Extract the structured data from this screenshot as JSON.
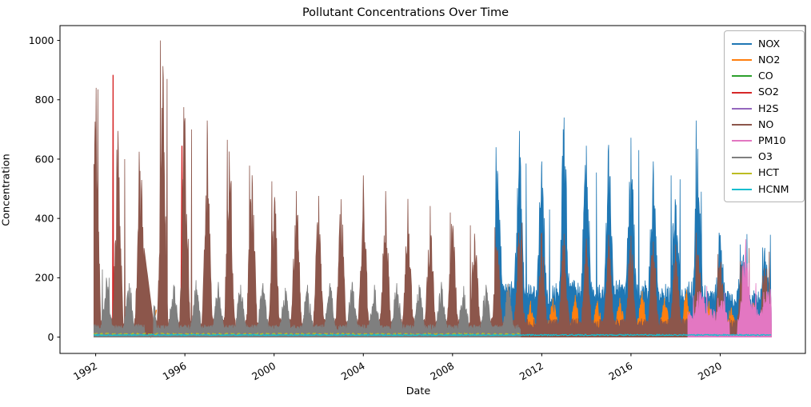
{
  "title": "Pollutant Concentrations Over Time",
  "axes": {
    "xlabel": "Date",
    "ylabel": "Concentration",
    "xlim": [
      1990.4,
      2023.82
    ],
    "ylim": [
      -55,
      1050
    ],
    "xticks": [
      1992,
      1996,
      2000,
      2004,
      2008,
      2012,
      2016,
      2020
    ],
    "yticks": [
      0,
      200,
      400,
      600,
      800,
      1000
    ],
    "grid": false,
    "tick_rotation_deg": 30
  },
  "legend": {
    "position": "upper right"
  },
  "chart_data": {
    "type": "line",
    "title": "Pollutant Concentrations Over Time",
    "xlabel": "Date",
    "ylabel": "Concentration",
    "x_unit": "year",
    "note": "Dense multi-decade daily time series; series stored as seasonal peak envelopes (year, winter/summer peak concentration) plus baselines, or explicit points for sparse series.",
    "series": [
      {
        "name": "NOX",
        "color": "#1f77b4",
        "render": "mass",
        "range": [
          2009.92,
          2022.3
        ],
        "base": 120,
        "phase": 0.0,
        "floor": 0.12,
        "exp": 1.7,
        "peaks": [
          [
            2009.95,
            640
          ],
          [
            2011.0,
            695
          ],
          [
            2011.3,
            585
          ],
          [
            2012.0,
            592
          ],
          [
            2012.35,
            430
          ],
          [
            2013.0,
            740
          ],
          [
            2014.0,
            645
          ],
          [
            2014.45,
            555
          ],
          [
            2015.0,
            648
          ],
          [
            2016.0,
            672
          ],
          [
            2016.35,
            630
          ],
          [
            2017.0,
            592
          ],
          [
            2017.8,
            545
          ],
          [
            2018.2,
            532
          ],
          [
            2018.92,
            730
          ],
          [
            2019.15,
            490
          ],
          [
            2019.95,
            352
          ],
          [
            2020.9,
            312
          ],
          [
            2021.2,
            347
          ],
          [
            2021.9,
            302
          ],
          [
            2022.25,
            345
          ]
        ]
      },
      {
        "name": "NO2",
        "color": "#ff7f0e",
        "render": "mass",
        "range": [
          2009.9,
          2022.3
        ],
        "base": 25,
        "phase": 0.5,
        "floor": 0.1,
        "exp": 1.5,
        "peaks": [
          [
            2010.5,
            110
          ],
          [
            2011.5,
            122
          ],
          [
            2012.5,
            132
          ],
          [
            2013.5,
            142
          ],
          [
            2014.5,
            122
          ],
          [
            2015.5,
            132
          ],
          [
            2016.5,
            155
          ],
          [
            2017.5,
            132
          ],
          [
            2018.5,
            160
          ],
          [
            2019.5,
            122
          ],
          [
            2020.5,
            100
          ],
          [
            2021.5,
            115
          ],
          [
            2022.2,
            108
          ]
        ],
        "extra_lines": [
          {
            "points": [
              [
                1994.0,
                118
              ],
              [
                1994.47,
                3
              ],
              [
                1994.72,
                92
              ]
            ]
          }
        ]
      },
      {
        "name": "CO",
        "color": "#2ca02c",
        "render": "noise-line",
        "range": [
          1991.92,
          2022.3
        ],
        "base": 3,
        "amp": 2
      },
      {
        "name": "SO2",
        "color": "#d62728",
        "render": "points-line",
        "points": [
          [
            1991.95,
            8
          ],
          [
            1992.4,
            8
          ],
          [
            1992.76,
            12
          ],
          [
            1992.78,
            884
          ],
          [
            1992.8,
            12
          ],
          [
            1993.1,
            8
          ],
          [
            1993.98,
            8
          ],
          [
            1994.03,
            300
          ],
          [
            1994.5,
            2
          ],
          [
            1994.56,
            58
          ],
          [
            1994.62,
            2
          ],
          [
            1995.2,
            3
          ],
          [
            1995.82,
            6
          ],
          [
            1995.87,
            645
          ],
          [
            1995.93,
            6
          ],
          [
            1996.0,
            4
          ]
        ]
      },
      {
        "name": "H2S",
        "color": "#9467bd",
        "render": "noise-line",
        "range": [
          1991.92,
          2022.3
        ],
        "base": 2,
        "amp": 0.8
      },
      {
        "name": "NO",
        "color": "#8c564b",
        "render": "mass",
        "range": [
          1991.92,
          2022.3
        ],
        "base": 55,
        "phase": 0.0,
        "floor": 0.0,
        "exp": 1.7,
        "peaks": [
          [
            1992.02,
            840
          ],
          [
            1992.1,
            835
          ],
          [
            1993.0,
            695
          ],
          [
            1993.3,
            600
          ],
          [
            1993.95,
            625
          ],
          [
            1994.9,
            1000
          ],
          [
            1995.2,
            870
          ],
          [
            1995.95,
            775
          ],
          [
            1996.3,
            700
          ],
          [
            1997.0,
            730
          ],
          [
            1997.9,
            665
          ],
          [
            1998.9,
            578
          ],
          [
            1999.9,
            525
          ],
          [
            2001.0,
            492
          ],
          [
            2002.0,
            476
          ],
          [
            2003.0,
            465
          ],
          [
            2004.0,
            545
          ],
          [
            2005.0,
            492
          ],
          [
            2006.0,
            466
          ],
          [
            2007.0,
            442
          ],
          [
            2007.9,
            420
          ],
          [
            2008.8,
            377
          ],
          [
            2009.9,
            370
          ],
          [
            2011.1,
            385
          ],
          [
            2012.0,
            352
          ],
          [
            2013.0,
            348
          ],
          [
            2014.0,
            332
          ],
          [
            2015.0,
            345
          ],
          [
            2016.0,
            342
          ],
          [
            2017.0,
            322
          ],
          [
            2018.0,
            312
          ],
          [
            2018.92,
            352
          ],
          [
            2019.9,
            280
          ],
          [
            2020.9,
            255
          ],
          [
            2021.3,
            300
          ],
          [
            2022.2,
            288
          ]
        ],
        "gaps": [
          {
            "from": 1994.17,
            "to": 1994.66,
            "vFrom": 300,
            "vTo": 6
          }
        ]
      },
      {
        "name": "PM10",
        "color": "#e377c2",
        "render": "mass",
        "range": [
          2018.55,
          2022.3
        ],
        "base": 45,
        "phase": 0.1,
        "floor": 0.45,
        "exp": 0.9,
        "peaks": [
          [
            2018.8,
            140
          ],
          [
            2019.0,
            152
          ],
          [
            2019.4,
            172
          ],
          [
            2019.9,
            132
          ],
          [
            2020.2,
            150
          ],
          [
            2020.42,
            60
          ],
          [
            2020.8,
            60
          ],
          [
            2021.0,
            240
          ],
          [
            2021.15,
            330
          ],
          [
            2021.3,
            250
          ],
          [
            2021.6,
            182
          ],
          [
            2021.95,
            152
          ],
          [
            2022.25,
            162
          ]
        ],
        "gaps": [
          {
            "from": 2020.42,
            "to": 2020.78,
            "vFrom": 8,
            "vTo": 8
          }
        ]
      },
      {
        "name": "O3",
        "color": "#7f7f7f",
        "render": "mass",
        "range": [
          1991.92,
          2011.05
        ],
        "base": 32,
        "phase": 0.5,
        "floor": 0.05,
        "exp": 1.4,
        "peaks": [
          [
            1992.3,
            228
          ],
          [
            1992.6,
            200
          ],
          [
            1993.5,
            182
          ],
          [
            1994.5,
            190
          ],
          [
            1995.5,
            176
          ],
          [
            1996.5,
            192
          ],
          [
            1997.5,
            186
          ],
          [
            1998.5,
            176
          ],
          [
            1999.5,
            182
          ],
          [
            2000.5,
            166
          ],
          [
            2001.5,
            176
          ],
          [
            2002.5,
            182
          ],
          [
            2003.5,
            186
          ],
          [
            2004.5,
            176
          ],
          [
            2005.5,
            182
          ],
          [
            2006.5,
            176
          ],
          [
            2007.5,
            186
          ],
          [
            2008.5,
            172
          ],
          [
            2009.5,
            176
          ],
          [
            2010.5,
            180
          ]
        ],
        "gaps": [
          {
            "from": 1994.2,
            "to": 1994.6,
            "vFrom": 6,
            "vTo": 6
          }
        ]
      },
      {
        "name": "HCT",
        "color": "#bcbd22",
        "render": "noise-line",
        "range": [
          1991.92,
          2011.0
        ],
        "base": 9,
        "amp": 4,
        "dash": "5,4"
      },
      {
        "name": "HCNM",
        "color": "#17becf",
        "render": "noise-line",
        "range": [
          1991.92,
          2022.3
        ],
        "base": 5,
        "amp": 4
      }
    ]
  }
}
